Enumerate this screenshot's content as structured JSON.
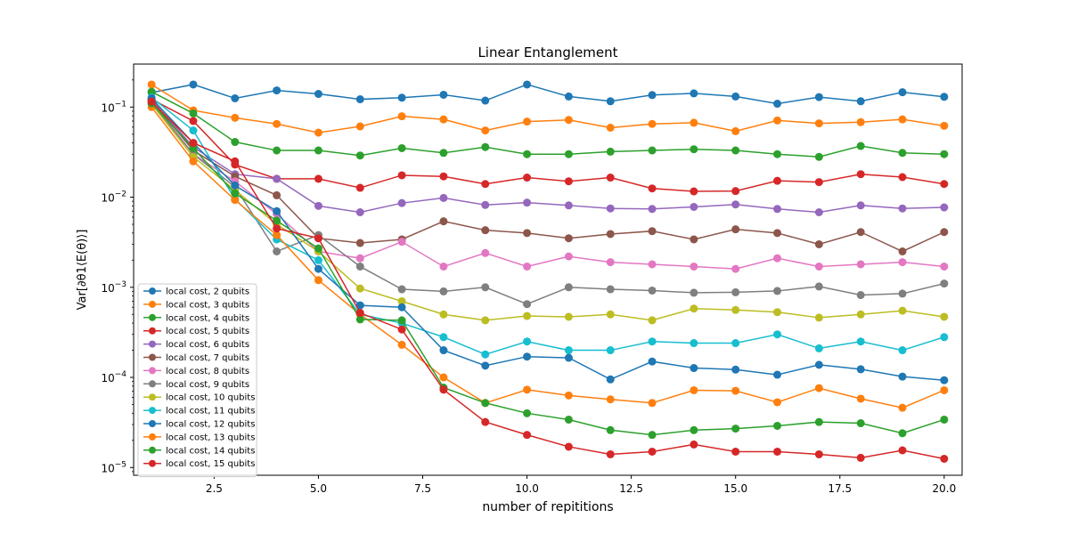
{
  "chart_data": {
    "type": "line",
    "title": "Linear Entanglement",
    "xlabel": "number of repititions",
    "ylabel": "Var[∂θ1⟨E(θ)⟩]",
    "yscale": "log",
    "xlim": [
      0.57,
      20.43
    ],
    "ylim": [
      8.2e-06,
      0.3
    ],
    "grid": false,
    "legend_position": "lower-left",
    "x_ticks": [
      2.5,
      5.0,
      7.5,
      10.0,
      12.5,
      15.0,
      17.5,
      20.0
    ],
    "x_tick_labels": [
      "2.5",
      "5.0",
      "7.5",
      "10.0",
      "12.5",
      "15.0",
      "17.5",
      "20.0"
    ],
    "y_ticks": [
      1e-05,
      0.0001,
      0.001,
      0.01,
      0.1
    ],
    "y_tick_labels": [
      {
        "base": "10",
        "exp": "−5"
      },
      {
        "base": "10",
        "exp": "−4"
      },
      {
        "base": "10",
        "exp": "−3"
      },
      {
        "base": "10",
        "exp": "−2"
      },
      {
        "base": "10",
        "exp": "−1"
      }
    ],
    "x": [
      1,
      2,
      3,
      4,
      5,
      6,
      7,
      8,
      9,
      10,
      11,
      12,
      13,
      14,
      15,
      16,
      17,
      18,
      19,
      20
    ],
    "series": [
      {
        "name": "local cost, 2 qubits",
        "color": "#1f77b4",
        "values": [
          0.145,
          0.178,
          0.125,
          0.153,
          0.14,
          0.122,
          0.127,
          0.137,
          0.118,
          0.178,
          0.131,
          0.116,
          0.136,
          0.142,
          0.131,
          0.109,
          0.129,
          0.116,
          0.146,
          0.13
        ]
      },
      {
        "name": "local cost, 3 qubits",
        "color": "#ff7f0e",
        "values": [
          0.178,
          0.092,
          0.076,
          0.065,
          0.052,
          0.061,
          0.079,
          0.073,
          0.055,
          0.069,
          0.072,
          0.059,
          0.065,
          0.067,
          0.054,
          0.071,
          0.066,
          0.068,
          0.073,
          0.062
        ]
      },
      {
        "name": "local cost, 4 qubits",
        "color": "#2ca02c",
        "values": [
          0.148,
          0.085,
          0.041,
          0.033,
          0.033,
          0.029,
          0.035,
          0.031,
          0.036,
          0.03,
          0.03,
          0.032,
          0.033,
          0.034,
          0.033,
          0.03,
          0.028,
          0.037,
          0.031,
          0.03
        ]
      },
      {
        "name": "local cost, 5 qubits",
        "color": "#d62728",
        "values": [
          0.122,
          0.07,
          0.023,
          0.016,
          0.016,
          0.0127,
          0.0175,
          0.017,
          0.014,
          0.0165,
          0.015,
          0.0165,
          0.0125,
          0.0116,
          0.0117,
          0.0152,
          0.0147,
          0.018,
          0.0167,
          0.014
        ]
      },
      {
        "name": "local cost, 6 qubits",
        "color": "#9467bd",
        "values": [
          0.12,
          0.036,
          0.018,
          0.016,
          0.008,
          0.0068,
          0.0086,
          0.0098,
          0.0082,
          0.0087,
          0.0081,
          0.0075,
          0.0074,
          0.0078,
          0.0083,
          0.0074,
          0.0068,
          0.0081,
          0.0075,
          0.0077
        ]
      },
      {
        "name": "local cost, 7 qubits",
        "color": "#8c564b",
        "values": [
          0.118,
          0.033,
          0.017,
          0.0105,
          0.0035,
          0.0031,
          0.0034,
          0.0054,
          0.0043,
          0.004,
          0.0035,
          0.0039,
          0.0042,
          0.0034,
          0.0044,
          0.004,
          0.003,
          0.0041,
          0.0025,
          0.0041
        ]
      },
      {
        "name": "local cost, 8 qubits",
        "color": "#e377c2",
        "values": [
          0.115,
          0.03,
          0.015,
          0.0065,
          0.0025,
          0.0021,
          0.0032,
          0.0017,
          0.0024,
          0.0017,
          0.0022,
          0.0019,
          0.0018,
          0.0017,
          0.0016,
          0.0021,
          0.0017,
          0.0018,
          0.0019,
          0.0017
        ]
      },
      {
        "name": "local cost, 9 qubits",
        "color": "#7f7f7f",
        "values": [
          0.11,
          0.03,
          0.013,
          0.0025,
          0.0038,
          0.0017,
          0.00095,
          0.0009,
          0.001,
          0.00065,
          0.001,
          0.00095,
          0.00092,
          0.00087,
          0.00088,
          0.00091,
          0.00102,
          0.00082,
          0.00085,
          0.0011
        ]
      },
      {
        "name": "local cost, 10 qubits",
        "color": "#bcbd22",
        "values": [
          0.108,
          0.028,
          0.012,
          0.005,
          0.0025,
          0.00097,
          0.0007,
          0.0005,
          0.00043,
          0.00048,
          0.00047,
          0.0005,
          0.00043,
          0.00058,
          0.00056,
          0.00053,
          0.00046,
          0.0005,
          0.00055,
          0.00047
        ]
      },
      {
        "name": "local cost, 11 qubits",
        "color": "#17becf",
        "values": [
          0.128,
          0.055,
          0.0095,
          0.0034,
          0.002,
          0.0005,
          0.0004,
          0.00028,
          0.00018,
          0.00025,
          0.0002,
          0.0002,
          0.00025,
          0.00024,
          0.00024,
          0.0003,
          0.00021,
          0.00025,
          0.0002,
          0.00028
        ]
      },
      {
        "name": "local cost, 12 qubits",
        "color": "#1f77b4",
        "values": [
          0.125,
          0.04,
          0.0135,
          0.007,
          0.0016,
          0.00063,
          0.0006,
          0.0002,
          0.000135,
          0.00017,
          0.000165,
          9.5e-05,
          0.00015,
          0.000127,
          0.000122,
          0.000107,
          0.000138,
          0.000123,
          0.000102,
          9.3e-05
        ]
      },
      {
        "name": "local cost, 13 qubits",
        "color": "#ff7f0e",
        "values": [
          0.1,
          0.025,
          0.0093,
          0.0038,
          0.0012,
          0.0005,
          0.00023,
          0.0001,
          5.2e-05,
          7.3e-05,
          6.3e-05,
          5.7e-05,
          5.2e-05,
          7.2e-05,
          7.1e-05,
          5.3e-05,
          7.6e-05,
          5.8e-05,
          4.6e-05,
          7.2e-05
        ]
      },
      {
        "name": "local cost, 14 qubits",
        "color": "#2ca02c",
        "values": [
          0.11,
          0.035,
          0.011,
          0.0055,
          0.0027,
          0.00044,
          0.00043,
          7.7e-05,
          5.2e-05,
          4e-05,
          3.4e-05,
          2.6e-05,
          2.3e-05,
          2.6e-05,
          2.7e-05,
          2.9e-05,
          3.2e-05,
          3.1e-05,
          2.4e-05,
          3.4e-05
        ]
      },
      {
        "name": "local cost, 15 qubits",
        "color": "#d62728",
        "values": [
          0.115,
          0.04,
          0.025,
          0.0045,
          0.0035,
          0.00052,
          0.00034,
          7.3e-05,
          3.2e-05,
          2.3e-05,
          1.7e-05,
          1.4e-05,
          1.5e-05,
          1.8e-05,
          1.5e-05,
          1.5e-05,
          1.4e-05,
          1.28e-05,
          1.55e-05,
          1.25e-05
        ]
      }
    ]
  }
}
